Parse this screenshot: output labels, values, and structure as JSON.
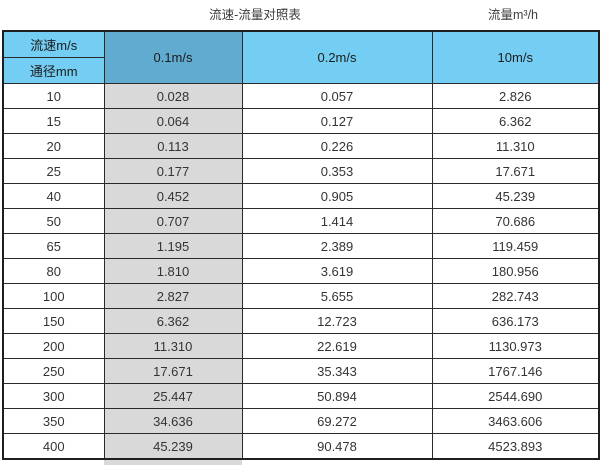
{
  "captions": {
    "table_caption": "流速-流量对照表",
    "unit_caption": "流量m³/h"
  },
  "table": {
    "corner_top": "流速m/s",
    "corner_bottom": "通径mm",
    "velocity_columns": [
      "0.1m/s",
      "0.2m/s",
      "10m/s"
    ],
    "rows": [
      {
        "diameter": "10",
        "flows": [
          "0.028",
          "0.057",
          "2.826"
        ]
      },
      {
        "diameter": "15",
        "flows": [
          "0.064",
          "0.127",
          "6.362"
        ]
      },
      {
        "diameter": "20",
        "flows": [
          "0.113",
          "0.226",
          "11.310"
        ]
      },
      {
        "diameter": "25",
        "flows": [
          "0.177",
          "0.353",
          "17.671"
        ]
      },
      {
        "diameter": "40",
        "flows": [
          "0.452",
          "0.905",
          "45.239"
        ]
      },
      {
        "diameter": "50",
        "flows": [
          "0.707",
          "1.414",
          "70.686"
        ]
      },
      {
        "diameter": "65",
        "flows": [
          "1.195",
          "2.389",
          "119.459"
        ]
      },
      {
        "diameter": "80",
        "flows": [
          "1.810",
          "3.619",
          "180.956"
        ]
      },
      {
        "diameter": "100",
        "flows": [
          "2.827",
          "5.655",
          "282.743"
        ]
      },
      {
        "diameter": "150",
        "flows": [
          "6.362",
          "12.723",
          "636.173"
        ]
      },
      {
        "diameter": "200",
        "flows": [
          "11.310",
          "22.619",
          "1130.973"
        ]
      },
      {
        "diameter": "250",
        "flows": [
          "17.671",
          "35.343",
          "1767.146"
        ]
      },
      {
        "diameter": "300",
        "flows": [
          "25.447",
          "50.894",
          "2544.690"
        ]
      },
      {
        "diameter": "350",
        "flows": [
          "34.636",
          "69.272",
          "3463.606"
        ]
      },
      {
        "diameter": "400",
        "flows": [
          "45.239",
          "90.478",
          "4523.893"
        ]
      }
    ]
  },
  "colors": {
    "header_blue": "#74cdf2",
    "header_blue_dark": "#61abd0",
    "highlight_gray": "#d9d9d9",
    "border": "#1f1f1f"
  },
  "chart_data": {
    "type": "table",
    "title": "流速-流量对照表",
    "value_unit": "流量m³/h",
    "row_header": "通径mm",
    "column_header": "流速m/s",
    "diameters_mm": [
      10,
      15,
      20,
      25,
      40,
      50,
      65,
      80,
      100,
      150,
      200,
      250,
      300,
      350,
      400
    ],
    "series": [
      {
        "name": "0.1m/s",
        "values": [
          0.028,
          0.064,
          0.113,
          0.177,
          0.452,
          0.707,
          1.195,
          1.81,
          2.827,
          6.362,
          11.31,
          17.671,
          25.447,
          34.636,
          45.239
        ]
      },
      {
        "name": "0.2m/s",
        "values": [
          0.057,
          0.127,
          0.226,
          0.353,
          0.905,
          1.414,
          2.389,
          3.619,
          5.655,
          12.723,
          22.619,
          35.343,
          50.894,
          69.272,
          90.478
        ]
      },
      {
        "name": "10m/s",
        "values": [
          2.826,
          6.362,
          11.31,
          17.671,
          45.239,
          70.686,
          119.459,
          180.956,
          282.743,
          636.173,
          1130.973,
          1767.146,
          2544.69,
          3463.606,
          4523.893
        ]
      }
    ]
  }
}
